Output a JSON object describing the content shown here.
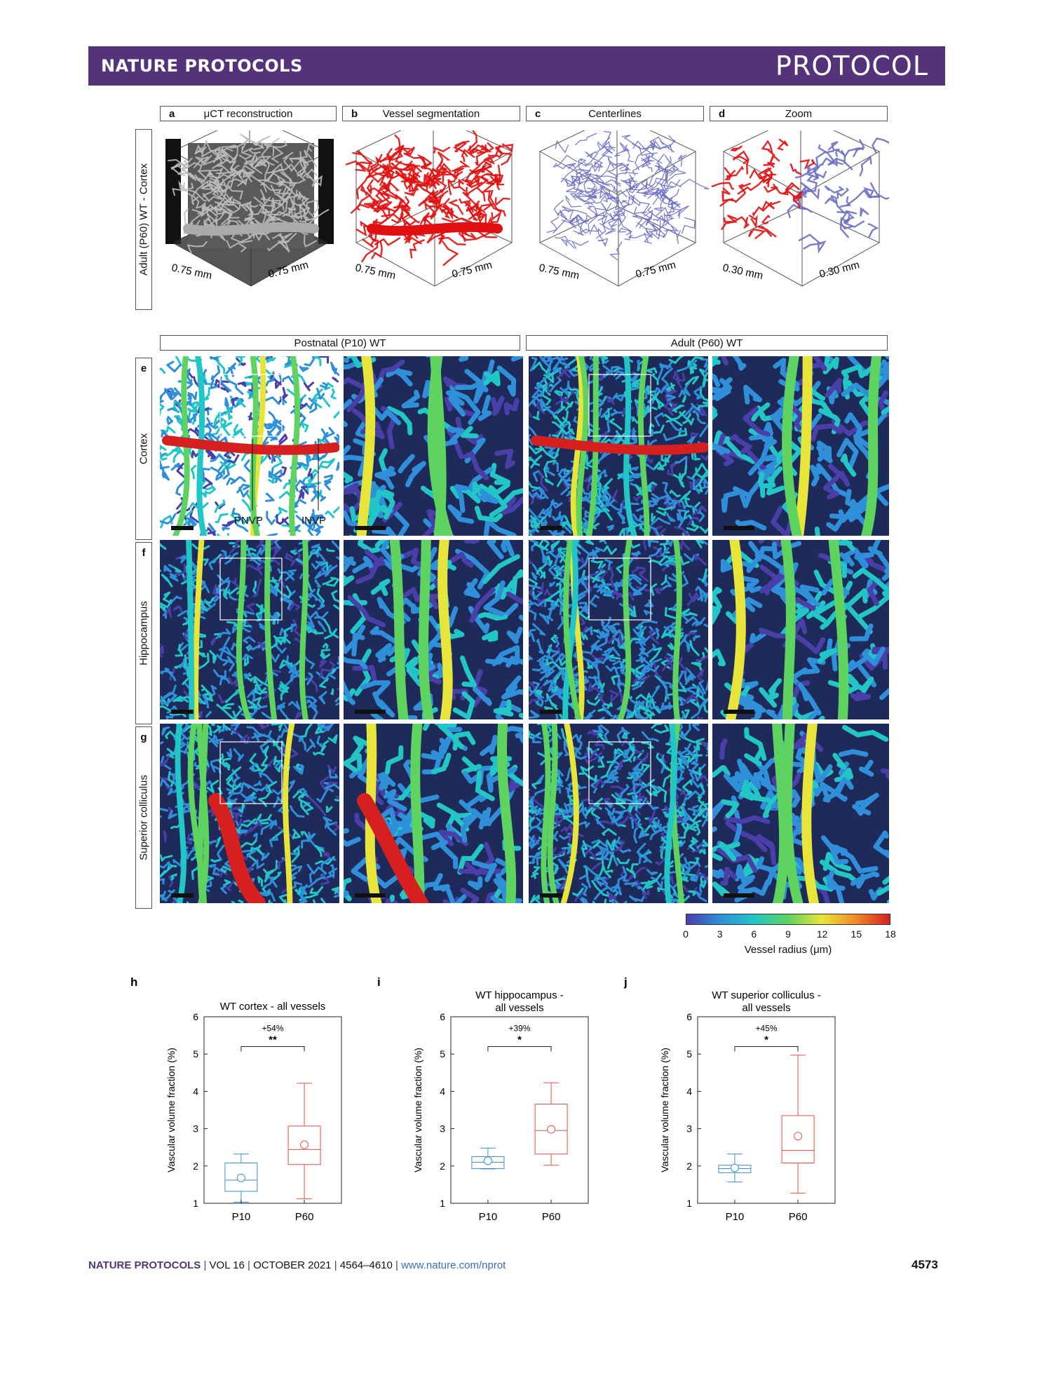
{
  "header": {
    "journal": "NATURE PROTOCOLS",
    "section": "PROTOCOL"
  },
  "top_panels": [
    {
      "letter": "a",
      "title": "μCT reconstruction",
      "scale_left": "0.75 mm",
      "scale_right": "0.75 mm",
      "color": "#bdbdbd"
    },
    {
      "letter": "b",
      "title": "Vessel segmentation",
      "scale_left": "0.75 mm",
      "scale_right": "0.75 mm",
      "color": "#e01010"
    },
    {
      "letter": "c",
      "title": "Centerlines",
      "scale_left": "0.75 mm",
      "scale_right": "0.75 mm",
      "color": "#6c6fc4"
    },
    {
      "letter": "d",
      "title": "Zoom",
      "scale_left": "0.30 mm",
      "scale_right": "0.30 mm",
      "color": "#e01010"
    }
  ],
  "top_row_label": "Adult (P60) WT - Cortex",
  "group_headers": {
    "left": "Postnatal (P10) WT",
    "right": "Adult (P60) WT"
  },
  "rows": [
    {
      "letter": "e",
      "region": "Cortex"
    },
    {
      "letter": "f",
      "region": "Hippocampus"
    },
    {
      "letter": "g",
      "region": "Superior colliculus"
    }
  ],
  "annotations": {
    "pnvp": "PNVP",
    "invp": "INVP"
  },
  "colorbar": {
    "ticks": [
      "0",
      "3",
      "6",
      "9",
      "12",
      "15",
      "18"
    ],
    "label": "Vessel radius (μm)",
    "colors": [
      "#4a3fa8",
      "#2f8fd8",
      "#22c6c6",
      "#5fd35f",
      "#e8e53a",
      "#f08a2a",
      "#d62020"
    ]
  },
  "chart_data": [
    {
      "type": "box",
      "panel": "h",
      "title": "WT cortex - all vessels",
      "ylabel": "Vascular volume fraction (%)",
      "categories": [
        "P10",
        "P60"
      ],
      "ylim": [
        1,
        6
      ],
      "yticks": [
        "1",
        "2",
        "3",
        "4",
        "5",
        "6"
      ],
      "boxes": [
        {
          "name": "P10",
          "min": 1.03,
          "q1": 1.32,
          "median": 1.62,
          "q3": 2.08,
          "max": 2.32,
          "mean": 1.68,
          "color": "#3b8fd4"
        },
        {
          "name": "P60",
          "min": 1.12,
          "q1": 2.04,
          "median": 2.44,
          "q3": 3.07,
          "max": 4.22,
          "mean": 2.57,
          "color": "#e8524a"
        }
      ],
      "change": "+54%",
      "significance": "**"
    },
    {
      "type": "box",
      "panel": "i",
      "title_lines": [
        "WT hippocampus -",
        "all vessels"
      ],
      "ylabel": "Vascular volume fraction (%)",
      "categories": [
        "P10",
        "P60"
      ],
      "ylim": [
        1,
        6
      ],
      "yticks": [
        "1",
        "2",
        "3",
        "4",
        "5",
        "6"
      ],
      "boxes": [
        {
          "name": "P10",
          "min": 1.92,
          "q1": 1.93,
          "median": 2.1,
          "q3": 2.25,
          "max": 2.48,
          "mean": 2.14,
          "color": "#3b8fd4"
        },
        {
          "name": "P60",
          "min": 2.02,
          "q1": 2.32,
          "median": 2.95,
          "q3": 3.66,
          "max": 4.23,
          "mean": 2.98,
          "color": "#e8524a"
        }
      ],
      "change": "+39%",
      "significance": "*"
    },
    {
      "type": "box",
      "panel": "j",
      "title_lines": [
        "WT superior colliculus -",
        "all vessels"
      ],
      "ylabel": "Vascular volume fraction (%)",
      "categories": [
        "P10",
        "P60"
      ],
      "ylim": [
        1,
        6
      ],
      "yticks": [
        "1",
        "2",
        "3",
        "4",
        "5",
        "6"
      ],
      "boxes": [
        {
          "name": "P10",
          "min": 1.57,
          "q1": 1.82,
          "median": 1.93,
          "q3": 2.02,
          "max": 2.32,
          "mean": 1.95,
          "color": "#3b8fd4"
        },
        {
          "name": "P60",
          "min": 1.27,
          "q1": 2.08,
          "median": 2.42,
          "q3": 3.35,
          "max": 4.97,
          "mean": 2.8,
          "color": "#e8524a"
        }
      ],
      "change": "+45%",
      "significance": "*"
    }
  ],
  "footer": {
    "journal": "NATURE PROTOCOLS",
    "volume": "VOL 16",
    "date": "OCTOBER 2021",
    "pages": "4564–4610",
    "url": "www.nature.com/nprot",
    "page_number": "4573"
  }
}
